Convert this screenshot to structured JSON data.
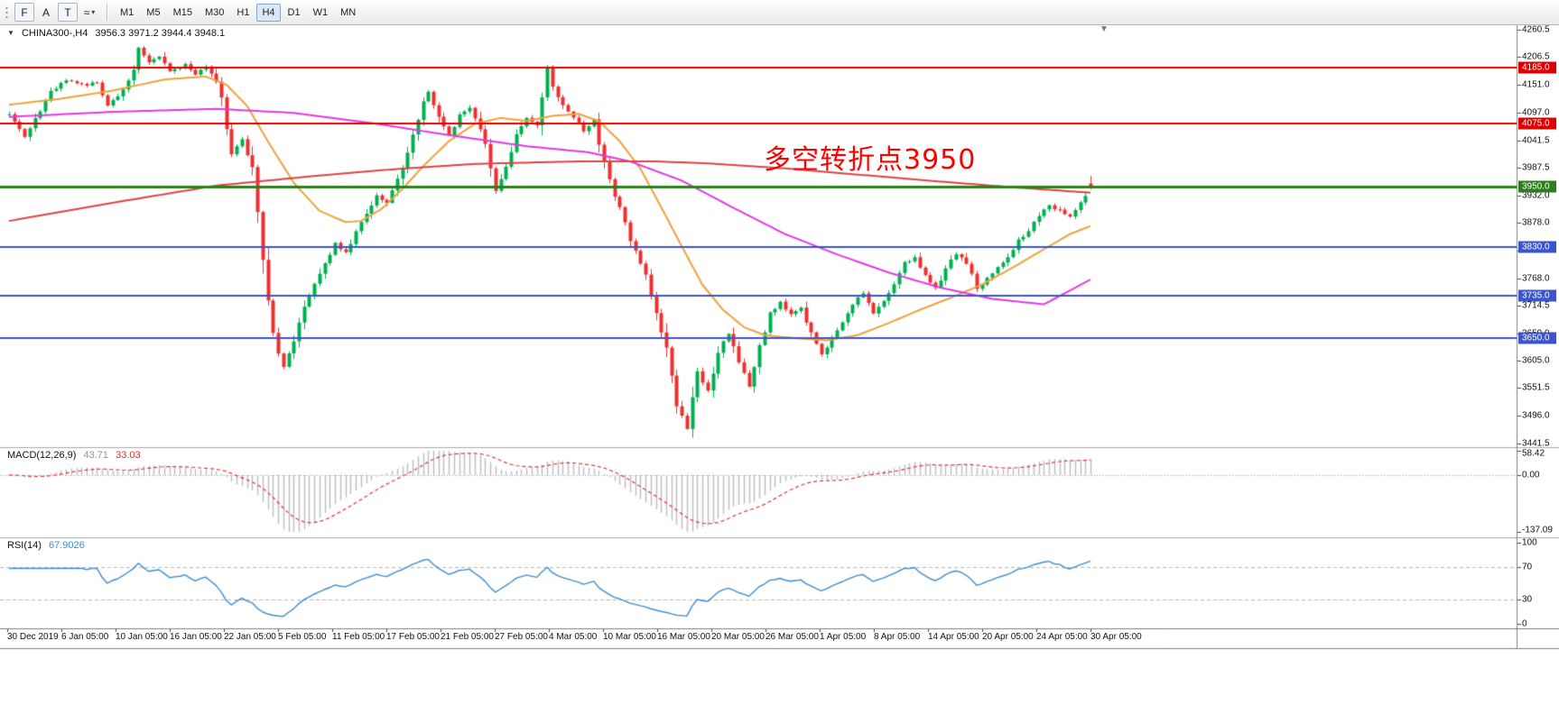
{
  "toolbar": {
    "tools": [
      {
        "name": "chart-tool-button",
        "label": "F",
        "boxed": true
      },
      {
        "name": "arrow-label-tool-button",
        "label": "A",
        "boxed": false
      },
      {
        "name": "text-tool-button",
        "label": "T",
        "boxed": true
      },
      {
        "name": "cycle-lines-button",
        "label": "≈",
        "boxed": false,
        "dropdown": "▾"
      }
    ],
    "timeframes": [
      "M1",
      "M5",
      "M15",
      "M30",
      "H1",
      "H4",
      "D1",
      "W1",
      "MN"
    ],
    "active_timeframe": "H4"
  },
  "chart_header": {
    "dropdown_icon": "▼",
    "symbol_period": "CHINA300-,H4",
    "ohlc": "3956.3 3971.2 3944.4 3948.1"
  },
  "annotation": {
    "text": "多空转折点3950",
    "color": "#ff0000"
  },
  "chart_data": {
    "type": "candlestick",
    "symbol": "CHINA300-",
    "timeframe": "H4",
    "last_ohlc": {
      "open": 3956.3,
      "high": 3971.2,
      "low": 3944.4,
      "close": 3948.1
    },
    "price_axis": {
      "ticks": [
        4260.5,
        4206.5,
        4151.0,
        4097.0,
        4041.5,
        3987.5,
        3932.0,
        3878.0,
        3822.5,
        3768.0,
        3714.5,
        3659.0,
        3605.0,
        3551.5,
        3496.0,
        3441.5
      ]
    },
    "time_labels": [
      "30 Dec 2019",
      "6 Jan 05:00",
      "10 Jan 05:00",
      "16 Jan 05:00",
      "22 Jan 05:00",
      "5 Feb 05:00",
      "11 Feb 05:00",
      "17 Feb 05:00",
      "21 Feb 05:00",
      "27 Feb 05:00",
      "4 Mar 05:00",
      "10 Mar 05:00",
      "16 Mar 05:00",
      "20 Mar 05:00",
      "26 Mar 05:00",
      "1 Apr 05:00",
      "8 Apr 05:00",
      "14 Apr 05:00",
      "20 Apr 05:00",
      "24 Apr 05:00",
      "30 Apr 05:00"
    ],
    "hlines": [
      {
        "price": 4185.0,
        "label": "4185.0",
        "color": "#dd0000",
        "width": 2
      },
      {
        "price": 4075.0,
        "label": "4075.0",
        "color": "#dd0000",
        "width": 2
      },
      {
        "price": 3950.0,
        "label": "3950.0",
        "color": "#2e7d1e",
        "width": 3
      },
      {
        "price": 3830.0,
        "label": "3830.0",
        "color": "#3d55cc",
        "width": 2
      },
      {
        "price": 3735.0,
        "label": "3735.0",
        "color": "#3d55cc",
        "width": 2
      },
      {
        "price": 3650.0,
        "label": "3650.0",
        "color": "#3d55cc",
        "width": 2
      }
    ],
    "candles": {
      "count": 210,
      "up_color": "#00b050",
      "down_color": "#f02f2f",
      "close_anchors": [
        [
          0,
          4095
        ],
        [
          3,
          4048
        ],
        [
          5,
          4085
        ],
        [
          8,
          4138
        ],
        [
          11,
          4162
        ],
        [
          15,
          4150
        ],
        [
          17,
          4158
        ],
        [
          19,
          4112
        ],
        [
          21,
          4128
        ],
        [
          24,
          4180
        ],
        [
          25,
          4222
        ],
        [
          27,
          4195
        ],
        [
          29,
          4208
        ],
        [
          31,
          4178
        ],
        [
          34,
          4192
        ],
        [
          36,
          4172
        ],
        [
          38,
          4188
        ],
        [
          40,
          4158
        ],
        [
          41,
          4128
        ],
        [
          43,
          4012
        ],
        [
          45,
          4042
        ],
        [
          47,
          3992
        ],
        [
          49,
          3808
        ],
        [
          51,
          3655
        ],
        [
          53,
          3592
        ],
        [
          55,
          3640
        ],
        [
          57,
          3718
        ],
        [
          60,
          3778
        ],
        [
          63,
          3838
        ],
        [
          65,
          3818
        ],
        [
          68,
          3878
        ],
        [
          71,
          3932
        ],
        [
          73,
          3918
        ],
        [
          76,
          3988
        ],
        [
          79,
          4088
        ],
        [
          81,
          4138
        ],
        [
          83,
          4088
        ],
        [
          85,
          4052
        ],
        [
          87,
          4092
        ],
        [
          89,
          4108
        ],
        [
          91,
          4062
        ],
        [
          93,
          3992
        ],
        [
          94,
          3942
        ],
        [
          96,
          3988
        ],
        [
          98,
          4048
        ],
        [
          100,
          4088
        ],
        [
          102,
          4072
        ],
        [
          104,
          4182
        ],
        [
          105,
          4148
        ],
        [
          107,
          4112
        ],
        [
          109,
          4088
        ],
        [
          111,
          4058
        ],
        [
          113,
          4082
        ],
        [
          115,
          3998
        ],
        [
          117,
          3932
        ],
        [
          119,
          3878
        ],
        [
          121,
          3818
        ],
        [
          123,
          3778
        ],
        [
          125,
          3698
        ],
        [
          127,
          3638
        ],
        [
          129,
          3518
        ],
        [
          131,
          3472
        ],
        [
          133,
          3588
        ],
        [
          135,
          3545
        ],
        [
          137,
          3622
        ],
        [
          139,
          3658
        ],
        [
          141,
          3598
        ],
        [
          143,
          3556
        ],
        [
          145,
          3638
        ],
        [
          147,
          3698
        ],
        [
          149,
          3722
        ],
        [
          151,
          3698
        ],
        [
          153,
          3708
        ],
        [
          155,
          3662
        ],
        [
          157,
          3618
        ],
        [
          159,
          3648
        ],
        [
          161,
          3678
        ],
        [
          163,
          3718
        ],
        [
          165,
          3738
        ],
        [
          167,
          3698
        ],
        [
          169,
          3722
        ],
        [
          171,
          3758
        ],
        [
          173,
          3798
        ],
        [
          175,
          3808
        ],
        [
          177,
          3772
        ],
        [
          179,
          3748
        ],
        [
          181,
          3788
        ],
        [
          183,
          3818
        ],
        [
          185,
          3798
        ],
        [
          187,
          3748
        ],
        [
          189,
          3768
        ],
        [
          191,
          3792
        ],
        [
          193,
          3812
        ],
        [
          195,
          3842
        ],
        [
          197,
          3862
        ],
        [
          199,
          3892
        ],
        [
          201,
          3912
        ],
        [
          203,
          3902
        ],
        [
          205,
          3892
        ],
        [
          207,
          3918
        ],
        [
          209,
          3948
        ]
      ]
    },
    "ma_lines": [
      {
        "name": "ma-fast-orange",
        "color": "#f0a23c",
        "width": 2,
        "anchors": [
          [
            0,
            4112
          ],
          [
            10,
            4124
          ],
          [
            20,
            4140
          ],
          [
            30,
            4162
          ],
          [
            38,
            4168
          ],
          [
            42,
            4152
          ],
          [
            46,
            4110
          ],
          [
            50,
            4040
          ],
          [
            55,
            3958
          ],
          [
            60,
            3902
          ],
          [
            65,
            3880
          ],
          [
            68,
            3882
          ],
          [
            72,
            3906
          ],
          [
            76,
            3945
          ],
          [
            80,
            3990
          ],
          [
            85,
            4040
          ],
          [
            90,
            4074
          ],
          [
            95,
            4086
          ],
          [
            100,
            4080
          ],
          [
            105,
            4090
          ],
          [
            110,
            4094
          ],
          [
            114,
            4080
          ],
          [
            118,
            4040
          ],
          [
            122,
            3986
          ],
          [
            126,
            3910
          ],
          [
            130,
            3832
          ],
          [
            134,
            3756
          ],
          [
            138,
            3706
          ],
          [
            142,
            3672
          ],
          [
            146,
            3656
          ],
          [
            152,
            3650
          ],
          [
            158,
            3646
          ],
          [
            164,
            3656
          ],
          [
            170,
            3680
          ],
          [
            176,
            3706
          ],
          [
            182,
            3730
          ],
          [
            188,
            3756
          ],
          [
            194,
            3790
          ],
          [
            200,
            3826
          ],
          [
            205,
            3856
          ],
          [
            209,
            3872
          ]
        ]
      },
      {
        "name": "ma-mid-magenta",
        "color": "#e23ae2",
        "width": 2,
        "anchors": [
          [
            0,
            4088
          ],
          [
            20,
            4098
          ],
          [
            40,
            4104
          ],
          [
            55,
            4096
          ],
          [
            70,
            4076
          ],
          [
            85,
            4052
          ],
          [
            100,
            4030
          ],
          [
            112,
            4018
          ],
          [
            120,
            4000
          ],
          [
            130,
            3962
          ],
          [
            140,
            3908
          ],
          [
            150,
            3856
          ],
          [
            160,
            3816
          ],
          [
            170,
            3780
          ],
          [
            180,
            3750
          ],
          [
            190,
            3728
          ],
          [
            200,
            3717
          ],
          [
            209,
            3766
          ]
        ]
      },
      {
        "name": "ma-slow-red",
        "color": "#dd4444",
        "width": 2,
        "anchors": [
          [
            0,
            3882
          ],
          [
            20,
            3918
          ],
          [
            40,
            3952
          ],
          [
            60,
            3972
          ],
          [
            75,
            3985
          ],
          [
            90,
            3995
          ],
          [
            110,
            4000
          ],
          [
            125,
            4000
          ],
          [
            135,
            3996
          ],
          [
            150,
            3986
          ],
          [
            165,
            3973
          ],
          [
            180,
            3960
          ],
          [
            195,
            3948
          ],
          [
            209,
            3938
          ]
        ]
      }
    ],
    "macd": {
      "title": "MACD(12,26,9)",
      "value_main": "43.71",
      "value_signal": "33.03",
      "fast": 12,
      "slow": 26,
      "signal": 9,
      "axis": [
        58.42,
        0.0,
        -137.09
      ],
      "hist_color": "#b9bdc4",
      "signal_color": "#e33434"
    },
    "rsi": {
      "title": "RSI(14)",
      "value": "67.9026",
      "period": 14,
      "levels": [
        70,
        30
      ],
      "axis": [
        100,
        70,
        30,
        0
      ],
      "line_color": "#3e8ed0"
    }
  }
}
